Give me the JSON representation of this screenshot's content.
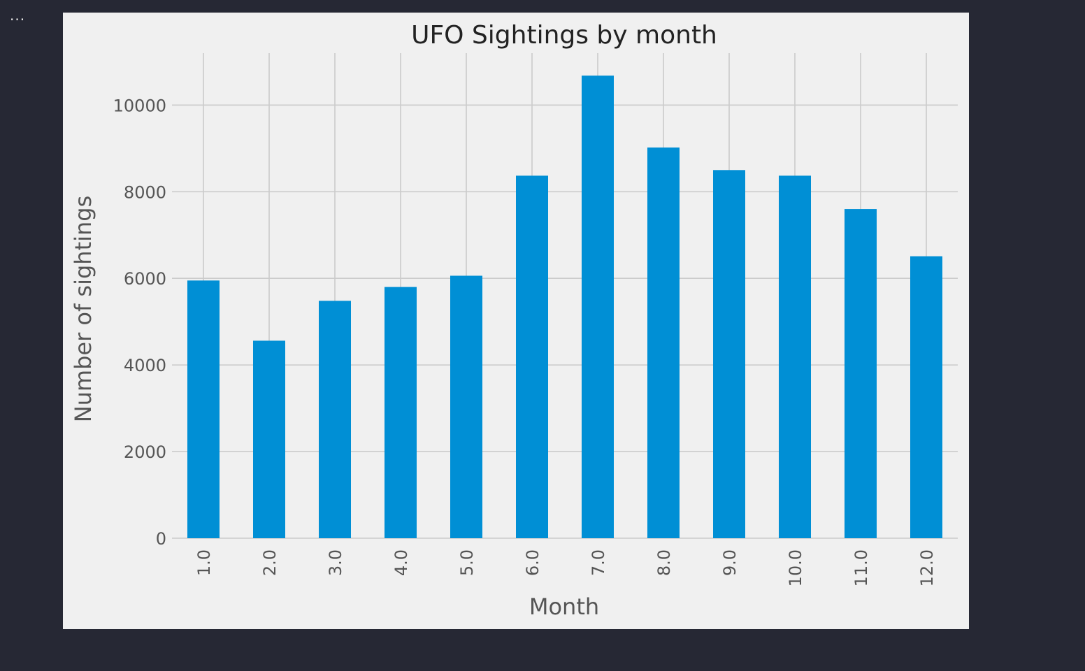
{
  "cell_output": {
    "more_menu_label": "..."
  },
  "colors": {
    "page_background": "#262834",
    "figure_background": "#f0f0f0",
    "bar": "#008fd5",
    "grid": "#cbcbcb",
    "text": "#555555",
    "title": "#222222"
  },
  "chart_data": {
    "type": "bar",
    "title": "UFO Sightings by month",
    "xlabel": "Month",
    "ylabel": "Number of sightings",
    "categories": [
      "1.0",
      "2.0",
      "3.0",
      "4.0",
      "5.0",
      "6.0",
      "7.0",
      "8.0",
      "9.0",
      "10.0",
      "11.0",
      "12.0"
    ],
    "values": [
      5950,
      4560,
      5480,
      5800,
      6060,
      8370,
      10680,
      9020,
      8500,
      8370,
      7600,
      6510
    ],
    "ylim": [
      0,
      11200
    ],
    "yticks": [
      0,
      2000,
      4000,
      6000,
      8000,
      10000
    ],
    "xtick_rotation": "vertical",
    "grid": true,
    "legend": "none"
  }
}
